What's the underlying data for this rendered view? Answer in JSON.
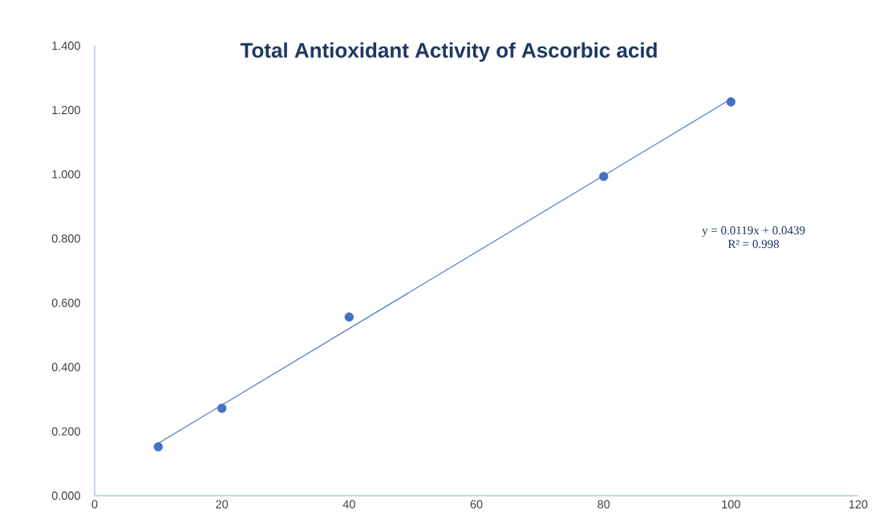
{
  "chart_data": {
    "type": "scatter",
    "title": "Total Antioxidant Activity of Ascorbic acid",
    "x": [
      10,
      20,
      40,
      80,
      100
    ],
    "series": [
      {
        "color": "#4472c4",
        "marker": "circle",
        "values": [
          0.152,
          0.272,
          0.556,
          0.993,
          1.225
        ]
      },
      {
        "type": "line",
        "color": "#4472c4",
        "marker": "none",
        "line_style": "solid",
        "x": [
          10,
          100
        ],
        "values": [
          0.163,
          1.234
        ]
      }
    ],
    "xlim": [
      0,
      120
    ],
    "xticks": [
      0,
      20,
      40,
      60,
      80,
      100,
      120
    ],
    "ylim": [
      0,
      1.4
    ],
    "yticks": [
      {
        "value": 0,
        "label": "0.000"
      },
      {
        "value": 0.2,
        "label": "0.200"
      },
      {
        "value": 0.4,
        "label": "0.400"
      },
      {
        "value": 0.6,
        "label": "0.600"
      },
      {
        "value": 0.8,
        "label": "0.800"
      },
      {
        "value": 1.0,
        "label": "1.000"
      },
      {
        "value": 1.2,
        "label": "1.200"
      },
      {
        "value": 1.4,
        "label": "1.400"
      }
    ],
    "annotations": [
      "y = 0.0119x + 0.0439",
      "R² = 0.998"
    ],
    "grid": false,
    "legend": false
  }
}
